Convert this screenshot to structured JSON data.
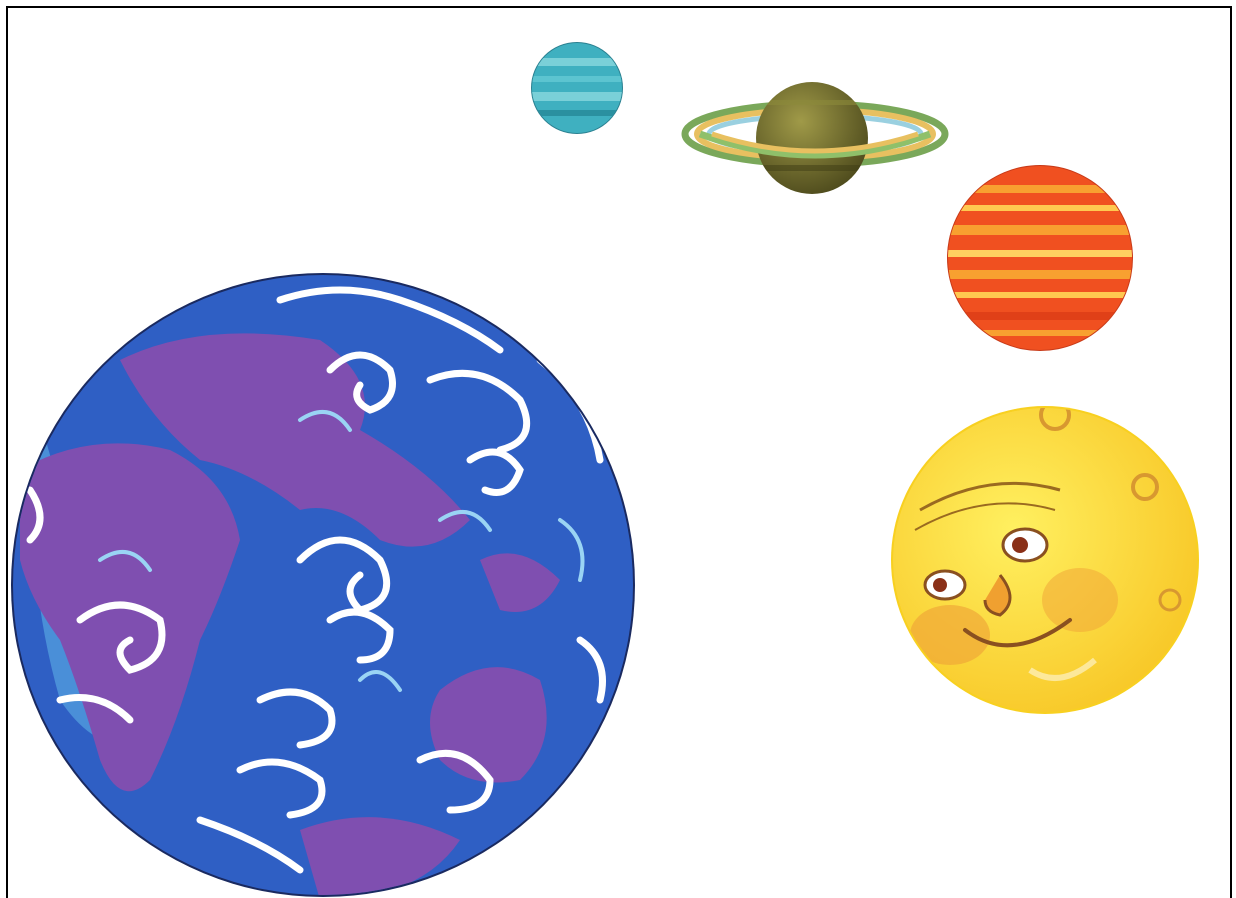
{
  "illustration": {
    "background_color": "#ffffff",
    "frame_color": "#000000",
    "bodies": [
      {
        "name": "earth",
        "colors": {
          "ocean": "#2f5fc4",
          "ocean_light": "#4aa0e0",
          "land": "#7f4fb0",
          "clouds": "#ffffff"
        }
      },
      {
        "name": "uranus",
        "colors": {
          "base": "#3fb0c0",
          "bands": "#7ad0d8"
        }
      },
      {
        "name": "saturn",
        "colors": {
          "body": "#6b6a2a",
          "rings": [
            "#8fc06a",
            "#e8c060",
            "#9ad0e0"
          ]
        }
      },
      {
        "name": "mars",
        "colors": {
          "base": "#f05020",
          "bands": "#f8a030"
        }
      },
      {
        "name": "moon-face",
        "colors": {
          "base": "#ffe030",
          "shade": "#f0b040",
          "lines": "#8a5020"
        }
      }
    ]
  }
}
